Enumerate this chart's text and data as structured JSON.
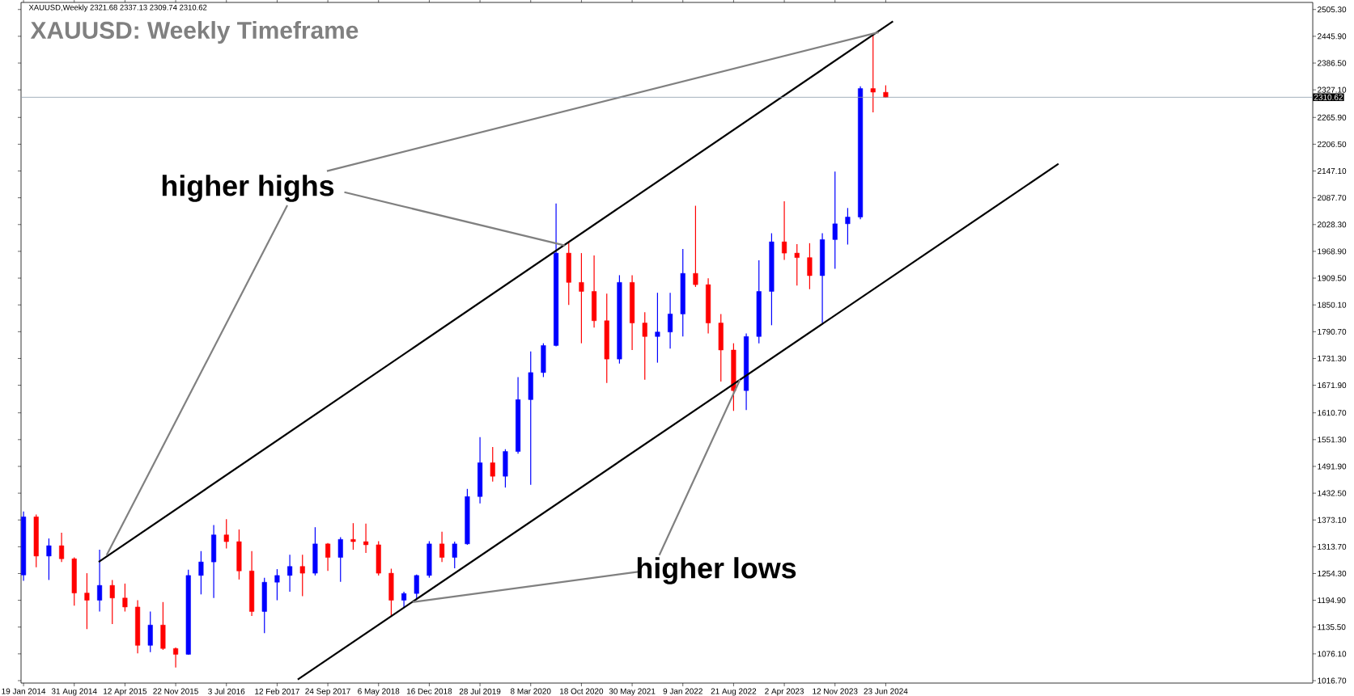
{
  "chart_data": {
    "type": "candlestick",
    "title": "XAUUSD: Weekly Timeframe",
    "annotations": [
      "XAUUSD,Weekly  2321.68 2337.13 2309.74 2310.62",
      "higher highs",
      "higher lows"
    ],
    "x": [
      "2014-01-19",
      "2014-03-16",
      "2014-05-11",
      "2014-07-06",
      "2014-08-31",
      "2014-10-26",
      "2014-12-21",
      "2015-02-15",
      "2015-04-12",
      "2015-06-07",
      "2015-08-02",
      "2015-09-27",
      "2015-11-22",
      "2016-01-17",
      "2016-03-13",
      "2016-05-08",
      "2016-07-03",
      "2016-08-28",
      "2016-10-23",
      "2016-12-18",
      "2017-02-12",
      "2017-04-09",
      "2017-06-04",
      "2017-07-30",
      "2017-09-24",
      "2017-11-19",
      "2018-01-14",
      "2018-03-11",
      "2018-05-06",
      "2018-07-01",
      "2018-08-26",
      "2018-10-21",
      "2018-12-16",
      "2019-02-10",
      "2019-04-07",
      "2019-06-02",
      "2019-07-28",
      "2019-09-22",
      "2019-11-17",
      "2020-01-12",
      "2020-03-08",
      "2020-05-03",
      "2020-06-28",
      "2020-08-23",
      "2020-10-18",
      "2020-12-13",
      "2021-02-07",
      "2021-04-04",
      "2021-05-30",
      "2021-07-25",
      "2021-09-19",
      "2021-11-14",
      "2022-01-09",
      "2022-03-06",
      "2022-05-01",
      "2022-06-26",
      "2022-08-21",
      "2022-10-16",
      "2022-12-11",
      "2023-02-05",
      "2023-04-02",
      "2023-05-28",
      "2023-07-23",
      "2023-09-17",
      "2023-11-12",
      "2024-01-07",
      "2024-03-03",
      "2024-04-28",
      "2024-06-23"
    ],
    "ohlc": [
      [
        1251,
        1392,
        1238,
        1380
      ],
      [
        1380,
        1385,
        1268,
        1293
      ],
      [
        1293,
        1332,
        1240,
        1316
      ],
      [
        1316,
        1345,
        1280,
        1287
      ],
      [
        1287,
        1290,
        1183,
        1211
      ],
      [
        1211,
        1255,
        1131,
        1195
      ],
      [
        1195,
        1307,
        1170,
        1228
      ],
      [
        1228,
        1240,
        1142,
        1200
      ],
      [
        1200,
        1232,
        1170,
        1180
      ],
      [
        1180,
        1195,
        1077,
        1095
      ],
      [
        1095,
        1170,
        1080,
        1140
      ],
      [
        1140,
        1191,
        1085,
        1088
      ],
      [
        1088,
        1090,
        1046,
        1075
      ],
      [
        1075,
        1263,
        1074,
        1250
      ],
      [
        1250,
        1304,
        1208,
        1280
      ],
      [
        1280,
        1362,
        1200,
        1340
      ],
      [
        1340,
        1375,
        1310,
        1325
      ],
      [
        1325,
        1352,
        1241,
        1260
      ],
      [
        1260,
        1304,
        1160,
        1170
      ],
      [
        1170,
        1245,
        1122,
        1235
      ],
      [
        1235,
        1264,
        1195,
        1250
      ],
      [
        1250,
        1296,
        1214,
        1270
      ],
      [
        1270,
        1296,
        1204,
        1255
      ],
      [
        1255,
        1357,
        1250,
        1320
      ],
      [
        1320,
        1322,
        1260,
        1290
      ],
      [
        1290,
        1335,
        1236,
        1330
      ],
      [
        1330,
        1366,
        1307,
        1325
      ],
      [
        1325,
        1365,
        1300,
        1318
      ],
      [
        1318,
        1326,
        1250,
        1255
      ],
      [
        1255,
        1265,
        1160,
        1195
      ],
      [
        1195,
        1214,
        1180,
        1210
      ],
      [
        1210,
        1252,
        1196,
        1250
      ],
      [
        1250,
        1326,
        1245,
        1320
      ],
      [
        1320,
        1347,
        1280,
        1290
      ],
      [
        1290,
        1325,
        1266,
        1320
      ],
      [
        1320,
        1442,
        1318,
        1425
      ],
      [
        1425,
        1557,
        1410,
        1500
      ],
      [
        1500,
        1535,
        1458,
        1470
      ],
      [
        1470,
        1530,
        1445,
        1525
      ],
      [
        1525,
        1690,
        1520,
        1640
      ],
      [
        1640,
        1747,
        1451,
        1700
      ],
      [
        1700,
        1765,
        1690,
        1760
      ],
      [
        1760,
        2075,
        1758,
        1965
      ],
      [
        1965,
        1990,
        1850,
        1900
      ],
      [
        1900,
        1965,
        1765,
        1880
      ],
      [
        1880,
        1960,
        1800,
        1815
      ],
      [
        1815,
        1875,
        1677,
        1730
      ],
      [
        1730,
        1916,
        1720,
        1900
      ],
      [
        1900,
        1916,
        1750,
        1810
      ],
      [
        1810,
        1834,
        1684,
        1780
      ],
      [
        1780,
        1877,
        1722,
        1790
      ],
      [
        1790,
        1877,
        1753,
        1830
      ],
      [
        1830,
        1974,
        1780,
        1920
      ],
      [
        1920,
        2070,
        1890,
        1895
      ],
      [
        1895,
        1909,
        1787,
        1810
      ],
      [
        1810,
        1830,
        1680,
        1750
      ],
      [
        1750,
        1765,
        1615,
        1660
      ],
      [
        1660,
        1787,
        1617,
        1780
      ],
      [
        1780,
        1949,
        1765,
        1880
      ],
      [
        1880,
        2009,
        1805,
        1990
      ],
      [
        1990,
        2080,
        1950,
        1965
      ],
      [
        1965,
        1985,
        1893,
        1955
      ],
      [
        1955,
        1987,
        1885,
        1915
      ],
      [
        1915,
        2009,
        1810,
        1995
      ],
      [
        1995,
        2146,
        1930,
        2030
      ],
      [
        2030,
        2065,
        1984,
        2045
      ],
      [
        2045,
        2335,
        2040,
        2330
      ],
      [
        2330,
        2450,
        2277,
        2322
      ],
      [
        2321.68,
        2337.13,
        2309.74,
        2310.62
      ]
    ],
    "colors": [
      "#0000ff",
      "#ff0000",
      "#0000ff",
      "#ff0000",
      "#ff0000",
      "#ff0000",
      "#0000ff",
      "#ff0000",
      "#ff0000",
      "#ff0000",
      "#0000ff",
      "#ff0000",
      "#ff0000",
      "#0000ff",
      "#0000ff",
      "#0000ff",
      "#ff0000",
      "#ff0000",
      "#ff0000",
      "#0000ff",
      "#0000ff",
      "#0000ff",
      "#ff0000",
      "#0000ff",
      "#ff0000",
      "#0000ff",
      "#ff0000",
      "#ff0000",
      "#ff0000",
      "#ff0000",
      "#0000ff",
      "#0000ff",
      "#0000ff",
      "#ff0000",
      "#0000ff",
      "#0000ff",
      "#0000ff",
      "#ff0000",
      "#0000ff",
      "#0000ff",
      "#0000ff",
      "#0000ff",
      "#0000ff",
      "#ff0000",
      "#ff0000",
      "#ff0000",
      "#ff0000",
      "#0000ff",
      "#ff0000",
      "#ff0000",
      "#0000ff",
      "#0000ff",
      "#0000ff",
      "#ff0000",
      "#ff0000",
      "#ff0000",
      "#ff0000",
      "#0000ff",
      "#0000ff",
      "#0000ff",
      "#ff0000",
      "#ff0000",
      "#ff0000",
      "#0000ff",
      "#0000ff",
      "#0000ff",
      "#0000ff",
      "#ff0000",
      "#ff0000"
    ],
    "series": [
      {
        "type": "line",
        "color": "#000000",
        "x": [
          "2014-12-17",
          "2024-07-25"
        ],
        "values": [
          1280,
          2479
        ]
      },
      {
        "type": "line",
        "color": "#000000",
        "x": [
          "2017-05-14",
          "2026-07-26"
        ],
        "values": [
          1019,
          2163
        ]
      },
      {
        "type": "line",
        "color": "#808080",
        "x": [
          "2017-03-29",
          "2015-01-21"
        ],
        "values": [
          2071,
          1295
        ]
      },
      {
        "type": "line",
        "color": "#808080",
        "x": [
          "2017-12-06",
          "2020-08-05"
        ],
        "values": [
          2100,
          1982
        ]
      },
      {
        "type": "line",
        "color": "#808080",
        "x": [
          "2017-09-20",
          "2024-05-23"
        ],
        "values": [
          2147,
          2455
        ]
      },
      {
        "type": "line",
        "color": "#808080",
        "x": [
          "2021-07-08",
          "2018-10-03"
        ],
        "values": [
          1259,
          1191
        ]
      },
      {
        "type": "line",
        "color": "#808080",
        "x": [
          "2021-09-27",
          "2022-09-18"
        ],
        "values": [
          1295,
          1684
        ]
      }
    ],
    "ref_lines": [
      {
        "axis": "y",
        "value": 2310.62,
        "label": "2310.62",
        "color": "#8c9bab"
      }
    ],
    "xlim": [
      "2014-01-08",
      "2029-08-22"
    ],
    "xticks": [
      {
        "value": "2014-01-19",
        "label": "19 Jan 2014"
      },
      {
        "value": "2014-08-31",
        "label": "31 Aug 2014"
      },
      {
        "value": "2015-04-12",
        "label": "12 Apr 2015"
      },
      {
        "value": "2015-11-22",
        "label": "22 Nov 2015"
      },
      {
        "value": "2016-07-03",
        "label": "3 Jul 2016"
      },
      {
        "value": "2017-02-12",
        "label": "12 Feb 2017"
      },
      {
        "value": "2017-09-24",
        "label": "24 Sep 2017"
      },
      {
        "value": "2018-05-06",
        "label": "6 May 2018"
      },
      {
        "value": "2018-12-16",
        "label": "16 Dec 2018"
      },
      {
        "value": "2019-07-28",
        "label": "28 Jul 2019"
      },
      {
        "value": "2020-03-08",
        "label": "8 Mar 2020"
      },
      {
        "value": "2020-10-18",
        "label": "18 Oct 2020"
      },
      {
        "value": "2021-05-30",
        "label": "30 May 2021"
      },
      {
        "value": "2022-01-09",
        "label": "9 Jan 2022"
      },
      {
        "value": "2022-08-21",
        "label": "21 Aug 2022"
      },
      {
        "value": "2023-04-02",
        "label": "2 Apr 2023"
      },
      {
        "value": "2023-11-12",
        "label": "12 Nov 2023"
      },
      {
        "value": "2024-06-23",
        "label": "23 Jun 2024"
      }
    ],
    "ylim": [
      1011.3,
      2521
    ],
    "yticks": [
      {
        "value": 1016.7,
        "label": "1016.70"
      },
      {
        "value": 1076.1,
        "label": "1076.10"
      },
      {
        "value": 1135.5,
        "label": "1135.50"
      },
      {
        "value": 1194.9,
        "label": "1194.90"
      },
      {
        "value": 1254.3,
        "label": "1254.30"
      },
      {
        "value": 1313.7,
        "label": "1313.70"
      },
      {
        "value": 1373.1,
        "label": "1373.10"
      },
      {
        "value": 1432.5,
        "label": "1432.50"
      },
      {
        "value": 1491.9,
        "label": "1491.90"
      },
      {
        "value": 1551.3,
        "label": "1551.30"
      },
      {
        "value": 1610.7,
        "label": "1610.70"
      },
      {
        "value": 1671.9,
        "label": "1671.90"
      },
      {
        "value": 1731.3,
        "label": "1731.30"
      },
      {
        "value": 1790.7,
        "label": "1790.70"
      },
      {
        "value": 1850.1,
        "label": "1850.10"
      },
      {
        "value": 1909.5,
        "label": "1909.50"
      },
      {
        "value": 1968.9,
        "label": "1968.90"
      },
      {
        "value": 2028.3,
        "label": "2028.30"
      },
      {
        "value": 2087.7,
        "label": "2087.70"
      },
      {
        "value": 2147.1,
        "label": "2147.10"
      },
      {
        "value": 2206.5,
        "label": "2206.50"
      },
      {
        "value": 2265.9,
        "label": "2265.90"
      },
      {
        "value": 2327.1,
        "label": "2327.10"
      },
      {
        "value": 2386.5,
        "label": "2386.50"
      },
      {
        "value": 2445.9,
        "label": "2445.90"
      },
      {
        "value": 2505.3,
        "label": "2505.30"
      }
    ],
    "grid": false
  }
}
